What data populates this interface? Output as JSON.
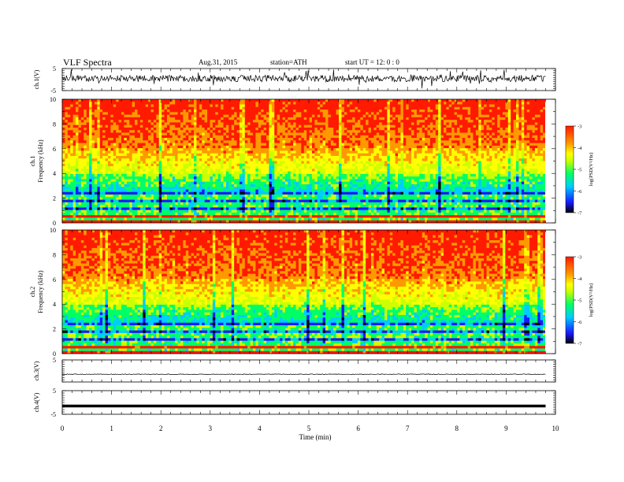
{
  "header": {
    "title": "VLF  Spectra",
    "date": "Aug.31, 2015",
    "station": "station=ATH",
    "start": "start  UT  =    12: 0  : 0"
  },
  "colors": {
    "axis": "#000000",
    "colormap": [
      "#000000",
      "#1a1aff",
      "#00ccff",
      "#00ff66",
      "#ccff00",
      "#ffff00",
      "#ff9900",
      "#ff1a00"
    ]
  },
  "chart_data": [
    {
      "type": "line",
      "name": "ch1-waveform",
      "ylabel": "ch.1(V)",
      "ylim": [
        -5,
        5
      ],
      "yticks": [
        "5",
        "-5"
      ],
      "xlim": [
        0,
        10
      ],
      "x_extent": [
        0,
        9.8
      ]
    },
    {
      "type": "heatmap",
      "name": "ch1-spectrogram",
      "ylabel": "ch.1\nFrequency (kHz)",
      "ylim": [
        0,
        10
      ],
      "yticks": [
        "0",
        "2",
        "4",
        "6",
        "8",
        "10"
      ],
      "xlim": [
        0,
        10
      ],
      "x_extent": [
        0,
        9.8
      ],
      "colorbar": {
        "label": "log(PSD(V²/Hz)",
        "range": [
          -7,
          -3
        ],
        "ticks": [
          "-3",
          "-4",
          "-5",
          "-6",
          "-7"
        ]
      }
    },
    {
      "type": "heatmap",
      "name": "ch2-spectrogram",
      "ylabel": "ch.2\nFrequency (kHz)",
      "ylim": [
        0,
        10
      ],
      "yticks": [
        "0",
        "2",
        "4",
        "6",
        "8",
        "10"
      ],
      "xlim": [
        0,
        10
      ],
      "x_extent": [
        0,
        9.8
      ],
      "colorbar": {
        "label": "log(PSD(V²/Hz)",
        "range": [
          -7,
          -3
        ],
        "ticks": [
          "-3",
          "-4",
          "-5",
          "-6",
          "-7"
        ]
      }
    },
    {
      "type": "line",
      "name": "ch3-waveform",
      "ylabel": "ch.3(V)",
      "ylim": [
        -5,
        5
      ],
      "yticks": [
        "5"
      ],
      "xlim": [
        0,
        10
      ],
      "x_extent": [
        0,
        9.8
      ]
    },
    {
      "type": "line",
      "name": "ch4-waveform",
      "ylabel": "ch.4(V)",
      "ylim": [
        -5,
        5
      ],
      "yticks": [
        "5",
        "-5"
      ],
      "xlim": [
        0,
        10
      ],
      "x_extent": [
        0,
        9.8
      ]
    }
  ],
  "xaxis": {
    "label": "Time  (min)",
    "ticks": [
      "0",
      "1",
      "2",
      "3",
      "4",
      "5",
      "6",
      "7",
      "8",
      "9",
      "10"
    ]
  }
}
